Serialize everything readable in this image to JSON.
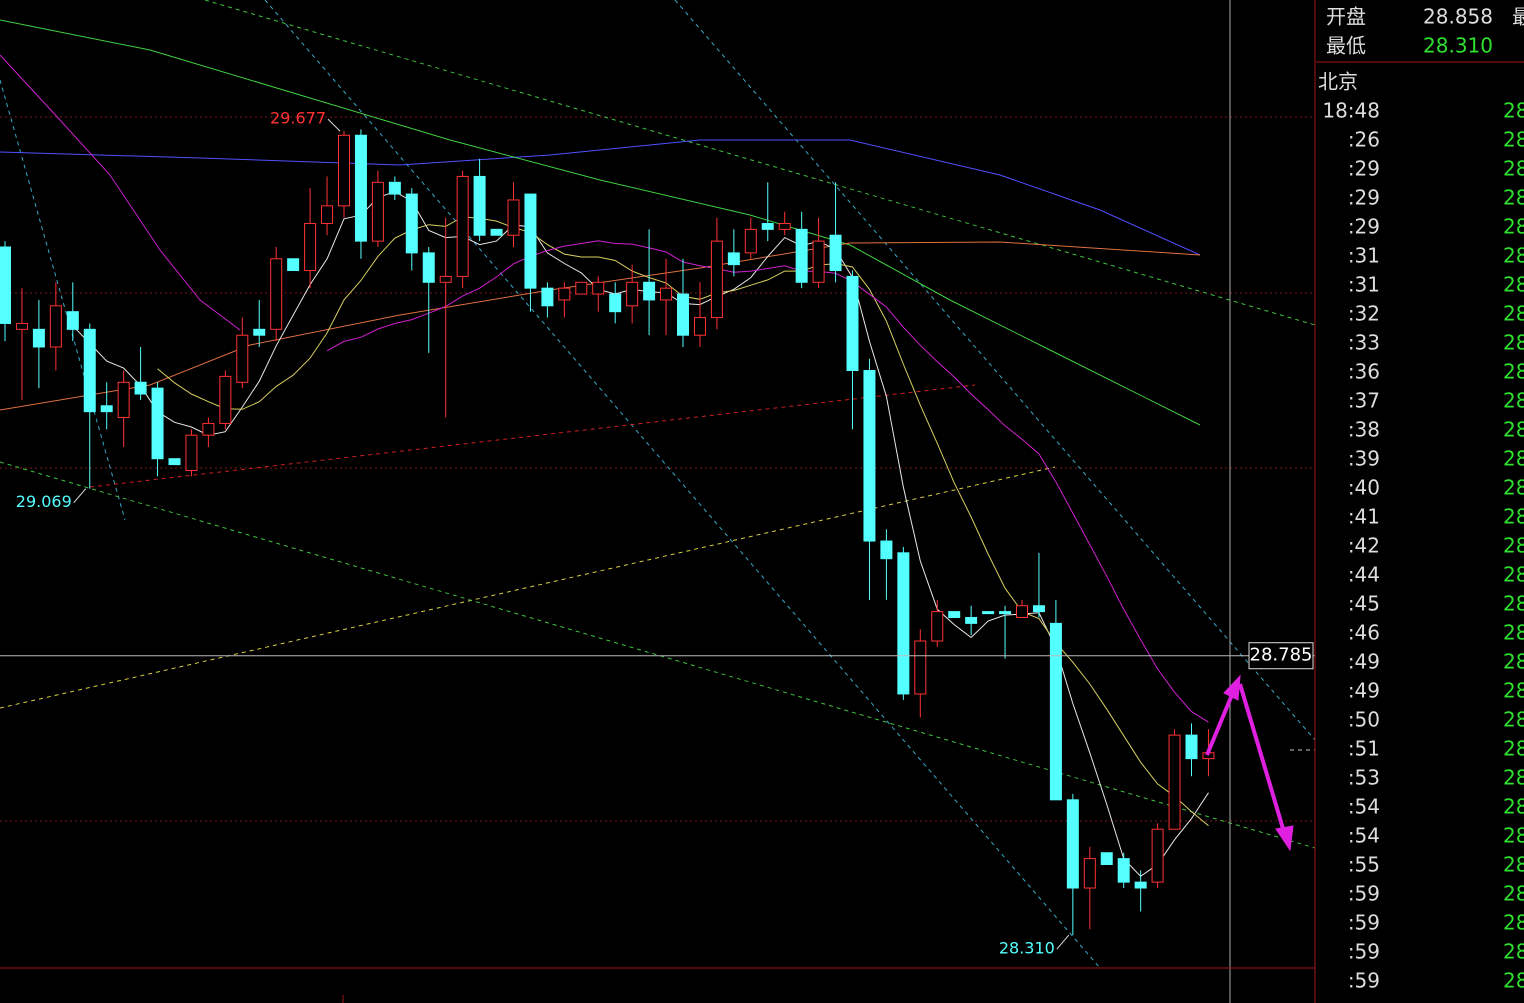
{
  "chart_data": {
    "type": "candlestick",
    "ylim": [
      28.254,
      29.9
    ],
    "up_color": "#ff3232",
    "down_color": "#54ffff",
    "candles": [
      [
        29.48,
        29.49,
        29.32,
        29.35
      ],
      [
        29.34,
        29.41,
        29.22,
        29.35
      ],
      [
        29.34,
        29.39,
        29.24,
        29.31
      ],
      [
        29.31,
        29.42,
        29.27,
        29.38
      ],
      [
        29.37,
        29.42,
        29.32,
        29.34
      ],
      [
        29.34,
        29.35,
        29.069,
        29.2
      ],
      [
        29.21,
        29.25,
        29.17,
        29.2
      ],
      [
        29.19,
        29.27,
        29.14,
        29.25
      ],
      [
        29.25,
        29.31,
        29.22,
        29.23
      ],
      [
        29.24,
        29.25,
        29.09,
        29.12
      ],
      [
        29.12,
        29.12,
        29.11,
        29.11
      ],
      [
        29.1,
        29.17,
        29.09,
        29.16
      ],
      [
        29.16,
        29.19,
        29.14,
        29.18
      ],
      [
        29.18,
        29.27,
        29.17,
        29.26
      ],
      [
        29.25,
        29.36,
        29.24,
        29.33
      ],
      [
        29.34,
        29.39,
        29.31,
        29.33
      ],
      [
        29.34,
        29.48,
        29.32,
        29.46
      ],
      [
        29.46,
        29.46,
        29.44,
        29.44
      ],
      [
        29.44,
        29.58,
        29.41,
        29.52
      ],
      [
        29.52,
        29.6,
        29.5,
        29.55
      ],
      [
        29.55,
        29.677,
        29.53,
        29.67
      ],
      [
        29.67,
        29.68,
        29.46,
        29.49
      ],
      [
        29.49,
        29.61,
        29.48,
        29.59
      ],
      [
        29.59,
        29.6,
        29.56,
        29.57
      ],
      [
        29.57,
        29.58,
        29.44,
        29.47
      ],
      [
        29.47,
        29.48,
        29.3,
        29.42
      ],
      [
        29.42,
        29.53,
        29.19,
        29.43
      ],
      [
        29.43,
        29.61,
        29.41,
        29.6
      ],
      [
        29.6,
        29.63,
        29.49,
        29.5
      ],
      [
        29.51,
        29.51,
        29.5,
        29.5
      ],
      [
        29.5,
        29.59,
        29.48,
        29.56
      ],
      [
        29.57,
        29.57,
        29.37,
        29.41
      ],
      [
        29.41,
        29.42,
        29.36,
        29.38
      ],
      [
        29.39,
        29.42,
        29.36,
        29.41
      ],
      [
        29.4,
        29.42,
        29.4,
        29.42
      ],
      [
        29.4,
        29.43,
        29.37,
        29.42
      ],
      [
        29.4,
        29.42,
        29.35,
        29.37
      ],
      [
        29.38,
        29.45,
        29.35,
        29.42
      ],
      [
        29.42,
        29.51,
        29.33,
        29.39
      ],
      [
        29.39,
        29.46,
        29.33,
        29.41
      ],
      [
        29.4,
        29.46,
        29.31,
        29.33
      ],
      [
        29.33,
        29.42,
        29.31,
        29.36
      ],
      [
        29.36,
        29.53,
        29.34,
        29.49
      ],
      [
        29.47,
        29.51,
        29.43,
        29.45
      ],
      [
        29.47,
        29.53,
        29.46,
        29.51
      ],
      [
        29.52,
        29.59,
        29.49,
        29.51
      ],
      [
        29.51,
        29.54,
        29.5,
        29.52
      ],
      [
        29.51,
        29.54,
        29.41,
        29.42
      ],
      [
        29.42,
        29.53,
        29.41,
        29.49
      ],
      [
        29.5,
        29.59,
        29.42,
        29.44
      ],
      [
        29.43,
        29.44,
        29.17,
        29.27
      ],
      [
        29.27,
        29.29,
        28.88,
        28.98
      ],
      [
        28.98,
        29.0,
        28.88,
        28.95
      ],
      [
        28.96,
        28.97,
        28.71,
        28.72
      ],
      [
        28.72,
        28.83,
        28.68,
        28.81
      ],
      [
        28.81,
        28.88,
        28.8,
        28.86
      ],
      [
        28.86,
        28.86,
        28.85,
        28.85
      ],
      [
        28.85,
        28.87,
        28.82,
        28.84
      ],
      [
        28.86,
        28.86,
        28.86,
        28.86
      ],
      [
        28.86,
        28.87,
        28.78,
        28.86
      ],
      [
        28.85,
        28.88,
        28.85,
        28.87
      ],
      [
        28.87,
        28.96,
        28.85,
        28.86
      ],
      [
        28.84,
        28.88,
        28.54,
        28.54
      ],
      [
        28.54,
        28.55,
        28.31,
        28.39
      ],
      [
        28.39,
        28.46,
        28.32,
        28.44
      ],
      [
        28.45,
        28.45,
        28.43,
        28.43
      ],
      [
        28.44,
        28.45,
        28.39,
        28.4
      ],
      [
        28.4,
        28.42,
        28.35,
        28.39
      ],
      [
        28.4,
        28.5,
        28.39,
        28.49
      ],
      [
        28.49,
        28.66,
        28.49,
        28.65
      ],
      [
        28.65,
        28.67,
        28.58,
        28.61
      ],
      [
        28.61,
        28.66,
        28.58,
        28.62
      ]
    ],
    "annotations": [
      {
        "value": 29.677,
        "label": "29.677",
        "color": "#ff3232"
      },
      {
        "value": 29.069,
        "label": "29.069",
        "color": "#54ffff"
      },
      {
        "value": 28.31,
        "label": "28.310",
        "color": "#54ffff"
      }
    ],
    "crosshair": {
      "value": 28.785,
      "label": "28.785"
    }
  },
  "panel": {
    "quote": [
      {
        "label": "开盘",
        "value": "28.858",
        "extra": "最"
      },
      {
        "label": "最低",
        "value": "28.310"
      }
    ],
    "city": "北京",
    "ticks": [
      {
        "time": "18:48",
        "price": "28"
      },
      {
        "time": ":26",
        "price": "28"
      },
      {
        "time": ":29",
        "price": "28"
      },
      {
        "time": ":29",
        "price": "28"
      },
      {
        "time": ":29",
        "price": "28"
      },
      {
        "time": ":31",
        "price": "28"
      },
      {
        "time": ":31",
        "price": "28"
      },
      {
        "time": ":32",
        "price": "28"
      },
      {
        "time": ":33",
        "price": "28"
      },
      {
        "time": ":36",
        "price": "28"
      },
      {
        "time": ":37",
        "price": "28"
      },
      {
        "time": ":38",
        "price": "28"
      },
      {
        "time": ":39",
        "price": "28"
      },
      {
        "time": ":40",
        "price": "28"
      },
      {
        "time": ":41",
        "price": "28"
      },
      {
        "time": ":42",
        "price": "28"
      },
      {
        "time": ":44",
        "price": "28"
      },
      {
        "time": ":45",
        "price": "28"
      },
      {
        "time": ":46",
        "price": "28"
      },
      {
        "time": ":49",
        "price": "28"
      },
      {
        "time": ":49",
        "price": "28"
      },
      {
        "time": ":50",
        "price": "28"
      },
      {
        "time": ":51",
        "price": "28"
      },
      {
        "time": ":53",
        "price": "28"
      },
      {
        "time": ":54",
        "price": "28"
      },
      {
        "time": ":54",
        "price": "28"
      },
      {
        "time": ":55",
        "price": "28"
      },
      {
        "time": ":59",
        "price": "28"
      },
      {
        "time": ":59",
        "price": "28"
      },
      {
        "time": ":59",
        "price": "28"
      },
      {
        "time": ":59",
        "price": "28"
      }
    ]
  }
}
